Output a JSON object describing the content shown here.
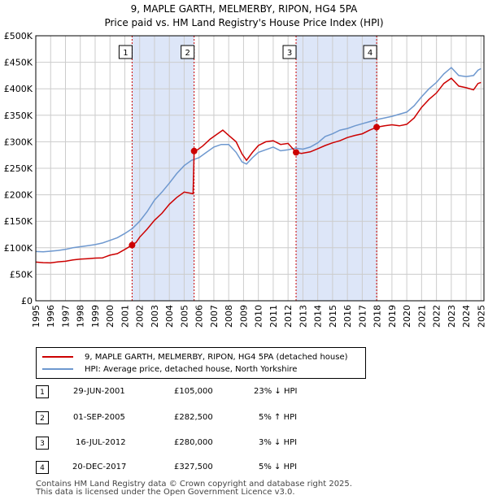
{
  "header": {
    "title": "9, MAPLE GARTH, MELMERBY, RIPON, HG4 5PA",
    "subtitle": "Price paid vs. HM Land Registry's House Price Index (HPI)"
  },
  "colors": {
    "price_line": "#cc0000",
    "hpi_line": "#6e98cf",
    "shade": "#dde6f8",
    "grid": "#cccccc"
  },
  "chart_data": {
    "type": "line",
    "title": "9, MAPLE GARTH, MELMERBY, RIPON, HG4 5PA",
    "subtitle": "Price paid vs. HM Land Registry's House Price Index (HPI)",
    "xlim": [
      1995,
      2025.2
    ],
    "ylim": [
      0,
      500000
    ],
    "x_ticks": [
      1995,
      1996,
      1997,
      1998,
      1999,
      2000,
      2001,
      2002,
      2003,
      2004,
      2005,
      2006,
      2007,
      2008,
      2009,
      2010,
      2011,
      2012,
      2013,
      2014,
      2015,
      2016,
      2017,
      2018,
      2019,
      2020,
      2021,
      2022,
      2023,
      2024,
      2025
    ],
    "y_ticks": [
      {
        "value": 0,
        "label": "£0"
      },
      {
        "value": 50000,
        "label": "£50K"
      },
      {
        "value": 100000,
        "label": "£100K"
      },
      {
        "value": 150000,
        "label": "£150K"
      },
      {
        "value": 200000,
        "label": "£200K"
      },
      {
        "value": 250000,
        "label": "£250K"
      },
      {
        "value": 300000,
        "label": "£300K"
      },
      {
        "value": 350000,
        "label": "£350K"
      },
      {
        "value": 400000,
        "label": "£400K"
      },
      {
        "value": 450000,
        "label": "£450K"
      },
      {
        "value": 500000,
        "label": "£500K"
      }
    ],
    "grid": true,
    "shaded_ranges": [
      [
        2001.49,
        2005.67
      ],
      [
        2012.54,
        2017.97
      ]
    ],
    "series": [
      {
        "name": "9, MAPLE GARTH, MELMERBY, RIPON, HG4 5PA (detached house)",
        "color": "#cc0000",
        "points": [
          [
            1995.0,
            73000
          ],
          [
            1995.5,
            72000
          ],
          [
            1996.0,
            71500
          ],
          [
            1996.5,
            73500
          ],
          [
            1997.0,
            74500
          ],
          [
            1997.5,
            77000
          ],
          [
            1998.0,
            78500
          ],
          [
            1998.5,
            79500
          ],
          [
            1999.0,
            80500
          ],
          [
            1999.5,
            81000
          ],
          [
            2000.0,
            86000
          ],
          [
            2000.5,
            89000
          ],
          [
            2001.0,
            97000
          ],
          [
            2001.49,
            105000
          ],
          [
            2001.75,
            110000
          ],
          [
            2002.0,
            120000
          ],
          [
            2002.5,
            135000
          ],
          [
            2003.0,
            152000
          ],
          [
            2003.5,
            165000
          ],
          [
            2004.0,
            182000
          ],
          [
            2004.5,
            195000
          ],
          [
            2005.0,
            205000
          ],
          [
            2005.6,
            202000
          ],
          [
            2005.67,
            282500
          ],
          [
            2005.9,
            285000
          ],
          [
            2006.25,
            292000
          ],
          [
            2006.75,
            305000
          ],
          [
            2007.25,
            315000
          ],
          [
            2007.6,
            322000
          ],
          [
            2008.0,
            312000
          ],
          [
            2008.5,
            300000
          ],
          [
            2008.9,
            277000
          ],
          [
            2009.2,
            265000
          ],
          [
            2009.6,
            280000
          ],
          [
            2010.0,
            293000
          ],
          [
            2010.5,
            300000
          ],
          [
            2011.0,
            302000
          ],
          [
            2011.5,
            295000
          ],
          [
            2012.0,
            297000
          ],
          [
            2012.54,
            280000
          ],
          [
            2012.9,
            278000
          ],
          [
            2013.5,
            281000
          ],
          [
            2014.0,
            287000
          ],
          [
            2014.5,
            293000
          ],
          [
            2015.0,
            298000
          ],
          [
            2015.5,
            302000
          ],
          [
            2016.0,
            308000
          ],
          [
            2016.5,
            312000
          ],
          [
            2017.0,
            315000
          ],
          [
            2017.5,
            322000
          ],
          [
            2017.97,
            327500
          ],
          [
            2018.5,
            330000
          ],
          [
            2019.0,
            332000
          ],
          [
            2019.5,
            330000
          ],
          [
            2020.0,
            333000
          ],
          [
            2020.5,
            345000
          ],
          [
            2021.0,
            365000
          ],
          [
            2021.5,
            380000
          ],
          [
            2022.0,
            392000
          ],
          [
            2022.5,
            410000
          ],
          [
            2023.0,
            420000
          ],
          [
            2023.5,
            405000
          ],
          [
            2024.0,
            402000
          ],
          [
            2024.5,
            398000
          ],
          [
            2024.8,
            410000
          ],
          [
            2025.0,
            412000
          ]
        ]
      },
      {
        "name": "HPI: Average price, detached house, North Yorkshire",
        "color": "#6e98cf",
        "points": [
          [
            1995.0,
            93000
          ],
          [
            1995.5,
            92500
          ],
          [
            1996.0,
            93500
          ],
          [
            1996.5,
            95000
          ],
          [
            1997.0,
            97000
          ],
          [
            1997.5,
            100000
          ],
          [
            1998.0,
            102000
          ],
          [
            1998.5,
            104000
          ],
          [
            1999.0,
            106000
          ],
          [
            1999.5,
            109000
          ],
          [
            2000.0,
            114000
          ],
          [
            2000.5,
            119000
          ],
          [
            2001.0,
            127000
          ],
          [
            2001.5,
            136000
          ],
          [
            2002.0,
            150000
          ],
          [
            2002.5,
            168000
          ],
          [
            2003.0,
            190000
          ],
          [
            2003.5,
            205000
          ],
          [
            2004.0,
            222000
          ],
          [
            2004.5,
            240000
          ],
          [
            2005.0,
            255000
          ],
          [
            2005.5,
            265000
          ],
          [
            2006.0,
            270000
          ],
          [
            2006.5,
            280000
          ],
          [
            2007.0,
            290000
          ],
          [
            2007.5,
            295000
          ],
          [
            2008.0,
            295000
          ],
          [
            2008.5,
            280000
          ],
          [
            2008.9,
            262000
          ],
          [
            2009.2,
            258000
          ],
          [
            2009.6,
            270000
          ],
          [
            2010.0,
            280000
          ],
          [
            2010.5,
            285000
          ],
          [
            2011.0,
            290000
          ],
          [
            2011.5,
            283000
          ],
          [
            2012.0,
            285000
          ],
          [
            2012.5,
            288000
          ],
          [
            2013.0,
            286000
          ],
          [
            2013.5,
            290000
          ],
          [
            2014.0,
            298000
          ],
          [
            2014.5,
            310000
          ],
          [
            2015.0,
            315000
          ],
          [
            2015.5,
            322000
          ],
          [
            2016.0,
            325000
          ],
          [
            2016.5,
            330000
          ],
          [
            2017.0,
            334000
          ],
          [
            2017.5,
            338000
          ],
          [
            2018.0,
            342000
          ],
          [
            2018.5,
            345000
          ],
          [
            2019.0,
            348000
          ],
          [
            2019.5,
            352000
          ],
          [
            2020.0,
            356000
          ],
          [
            2020.5,
            368000
          ],
          [
            2021.0,
            385000
          ],
          [
            2021.5,
            400000
          ],
          [
            2022.0,
            412000
          ],
          [
            2022.5,
            428000
          ],
          [
            2023.0,
            440000
          ],
          [
            2023.5,
            425000
          ],
          [
            2024.0,
            423000
          ],
          [
            2024.5,
            425000
          ],
          [
            2024.8,
            435000
          ],
          [
            2025.0,
            438000
          ]
        ]
      }
    ],
    "sales": [
      {
        "label": "1",
        "x": 2001.49,
        "price": 105000
      },
      {
        "label": "2",
        "x": 2005.67,
        "price": 282500
      },
      {
        "label": "3",
        "x": 2012.54,
        "price": 280000
      },
      {
        "label": "4",
        "x": 2017.97,
        "price": 327500
      }
    ]
  },
  "legend": {
    "price_label": "9, MAPLE GARTH, MELMERBY, RIPON, HG4 5PA (detached house)",
    "hpi_label": "HPI: Average price, detached house, North Yorkshire"
  },
  "transactions": [
    {
      "num": "1",
      "date": "29-JUN-2001",
      "price": "£105,000",
      "hpi": "23% ↓ HPI"
    },
    {
      "num": "2",
      "date": "01-SEP-2005",
      "price": "£282,500",
      "hpi": "5% ↑ HPI"
    },
    {
      "num": "3",
      "date": "16-JUL-2012",
      "price": "£280,000",
      "hpi": "3% ↓ HPI"
    },
    {
      "num": "4",
      "date": "20-DEC-2017",
      "price": "£327,500",
      "hpi": "5% ↓ HPI"
    }
  ],
  "footer": {
    "line1": "Contains HM Land Registry data © Crown copyright and database right 2025.",
    "line2": "This data is licensed under the Open Government Licence v3.0."
  }
}
